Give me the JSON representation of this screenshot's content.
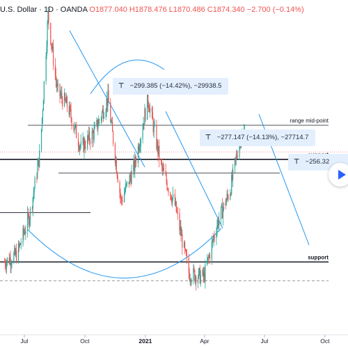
{
  "header": {
    "title": "U.S. Dollar · 1D · OANDA",
    "ohlc": "O1877.040 H1878.476 L1870.486 C1874.340 −2.700 (−0.14%)"
  },
  "drawings": {
    "hlines": [
      {
        "price": 1915,
        "label": "range mid-point",
        "bold": false
      },
      {
        "price": 1870,
        "label": "support",
        "bold": true
      },
      {
        "price": 1852,
        "label": "",
        "bold": false
      },
      {
        "price": 1800,
        "label": "",
        "bold": false
      },
      {
        "price": 1735,
        "label": "support",
        "bold": true
      }
    ],
    "current_price_line": 1880,
    "dashed_line": 1710
  },
  "measures": [
    {
      "text": "−299.385 (−14.42%), −29938.5"
    },
    {
      "text": "−277.147 (−14.13%), −27714.7"
    },
    {
      "text": "−256.32"
    }
  ],
  "chart_data": {
    "type": "candlestick",
    "title": "U.S. Dollar · 1D · OANDA",
    "x_ticks": [
      "Jul",
      "Oct",
      "2021",
      "Apr",
      "Jul",
      "Oct"
    ],
    "x_range": [
      "2020-05-25",
      "2021-11-05"
    ],
    "y_range": [
      1640,
      2080
    ],
    "close_path": [
      {
        "date": "2020-06-01",
        "price": 1735
      },
      {
        "date": "2020-06-20",
        "price": 1745
      },
      {
        "date": "2020-07-10",
        "price": 1800
      },
      {
        "date": "2020-07-25",
        "price": 1880
      },
      {
        "date": "2020-08-06",
        "price": 2060
      },
      {
        "date": "2020-08-20",
        "price": 1960
      },
      {
        "date": "2020-09-05",
        "price": 1940
      },
      {
        "date": "2020-09-25",
        "price": 1885
      },
      {
        "date": "2020-10-15",
        "price": 1905
      },
      {
        "date": "2020-11-05",
        "price": 1950
      },
      {
        "date": "2020-11-25",
        "price": 1815
      },
      {
        "date": "2020-12-15",
        "price": 1860
      },
      {
        "date": "2021-01-05",
        "price": 1950
      },
      {
        "date": "2021-01-25",
        "price": 1860
      },
      {
        "date": "2021-02-15",
        "price": 1810
      },
      {
        "date": "2021-03-08",
        "price": 1720
      },
      {
        "date": "2021-03-31",
        "price": 1715
      },
      {
        "date": "2021-04-20",
        "price": 1785
      },
      {
        "date": "2021-05-10",
        "price": 1830
      },
      {
        "date": "2021-05-25",
        "price": 1900
      },
      {
        "date": "2021-06-01",
        "price": 1905
      }
    ]
  }
}
